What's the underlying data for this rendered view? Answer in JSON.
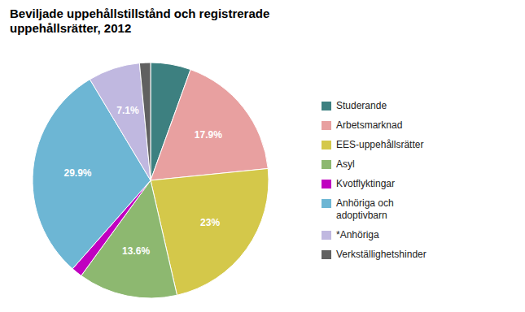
{
  "chart_data": {
    "type": "pie",
    "title": "Beviljade uppehållstillstånd och registrerade\nuppehållsrätter, 2012",
    "categories": [
      "Studerande",
      "Arbetsmarknad",
      "EES-uppehållsrätter",
      "Asyl",
      "Kvotflyktingar",
      "Anhöriga och\nadoptivbarn",
      "*Anhöriga",
      "Verkställighetshinder"
    ],
    "values": [
      5.5,
      17.9,
      23.0,
      13.6,
      1.5,
      29.9,
      7.1,
      1.5
    ],
    "value_labels": [
      null,
      "17.9%",
      "23%",
      "13.6%",
      null,
      "29.9%",
      "7.1%",
      null
    ],
    "colors": [
      "#3d8080",
      "#e8a0a0",
      "#d4c84a",
      "#8db870",
      "#c000c0",
      "#6db6d4",
      "#c0b8e0",
      "#606060"
    ],
    "data_labels": true,
    "legend": "right"
  }
}
